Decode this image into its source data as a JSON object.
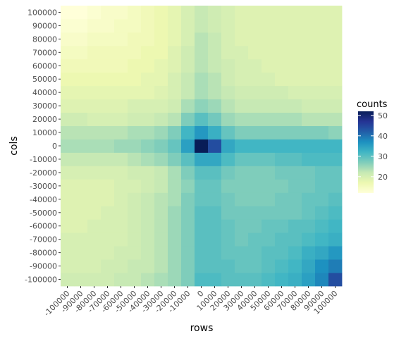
{
  "chart_data": {
    "type": "heatmap",
    "title": "",
    "xlabel": "rows",
    "ylabel": "cols",
    "x_ticks": [
      "-100000",
      "-90000",
      "-80000",
      "-70000",
      "-60000",
      "-50000",
      "-40000",
      "-30000",
      "-20000",
      "-10000",
      "0",
      "10000",
      "20000",
      "30000",
      "40000",
      "50000",
      "60000",
      "70000",
      "80000",
      "90000",
      "100000"
    ],
    "y_ticks": [
      "-100000",
      "-90000",
      "-80000",
      "-70000",
      "-60000",
      "-50000",
      "-40000",
      "-30000",
      "-20000",
      "-10000",
      "0",
      "10000",
      "20000",
      "30000",
      "40000",
      "50000",
      "60000",
      "70000",
      "80000",
      "90000",
      "100000"
    ],
    "x": [
      -100000,
      -90000,
      -80000,
      -70000,
      -60000,
      -50000,
      -40000,
      -30000,
      -20000,
      -10000,
      0,
      10000,
      20000,
      30000,
      40000,
      50000,
      60000,
      70000,
      80000,
      90000,
      100000
    ],
    "y": [
      -100000,
      -90000,
      -80000,
      -70000,
      -60000,
      -50000,
      -40000,
      -30000,
      -20000,
      -10000,
      0,
      10000,
      20000,
      30000,
      40000,
      50000,
      60000,
      70000,
      80000,
      90000,
      100000
    ],
    "values_note_removed": true,
    "values": [
      [
        21,
        21,
        21,
        21,
        22,
        22,
        23,
        24,
        25,
        27,
        31,
        31,
        30,
        30,
        30,
        31,
        32,
        33,
        35,
        38,
        44
      ],
      [
        20,
        20,
        20,
        21,
        21,
        22,
        22,
        23,
        25,
        27,
        30,
        30,
        30,
        29,
        29,
        30,
        31,
        32,
        34,
        37,
        39
      ],
      [
        20,
        20,
        20,
        20,
        21,
        21,
        22,
        23,
        25,
        27,
        30,
        30,
        29,
        29,
        29,
        30,
        30,
        31,
        33,
        34,
        36
      ],
      [
        20,
        20,
        20,
        20,
        20,
        21,
        22,
        23,
        25,
        27,
        30,
        30,
        29,
        28,
        29,
        29,
        30,
        30,
        31,
        32,
        33
      ],
      [
        19,
        19,
        20,
        20,
        20,
        21,
        22,
        23,
        25,
        27,
        30,
        30,
        29,
        28,
        28,
        29,
        29,
        30,
        30,
        31,
        32
      ],
      [
        19,
        19,
        19,
        20,
        20,
        21,
        22,
        23,
        25,
        27,
        30,
        30,
        28,
        28,
        28,
        28,
        28,
        28,
        29,
        30,
        31
      ],
      [
        19,
        19,
        19,
        19,
        20,
        21,
        22,
        23,
        24,
        27,
        29,
        29,
        28,
        27,
        27,
        27,
        28,
        28,
        29,
        29,
        30
      ],
      [
        19,
        19,
        19,
        19,
        20,
        20,
        21,
        22,
        24,
        26,
        29,
        29,
        27,
        27,
        27,
        27,
        27,
        28,
        28,
        29,
        29
      ],
      [
        20,
        20,
        20,
        20,
        20,
        21,
        21,
        22,
        24,
        27,
        30,
        30,
        28,
        27,
        27,
        27,
        28,
        28,
        28,
        29,
        29
      ],
      [
        22,
        22,
        22,
        22,
        22,
        23,
        24,
        25,
        27,
        30,
        34,
        34,
        31,
        29,
        29,
        29,
        30,
        30,
        31,
        31,
        31
      ],
      [
        24,
        24,
        24,
        24,
        25,
        25,
        26,
        27,
        29,
        35,
        52,
        44,
        34,
        32,
        32,
        32,
        32,
        32,
        32,
        32,
        32
      ],
      [
        23,
        23,
        23,
        23,
        23,
        24,
        24,
        25,
        27,
        32,
        36,
        33,
        29,
        27,
        27,
        27,
        27,
        27,
        27,
        27,
        26
      ],
      [
        21,
        21,
        20,
        20,
        20,
        21,
        21,
        22,
        23,
        27,
        30,
        28,
        25,
        24,
        24,
        24,
        24,
        24,
        23,
        23,
        23
      ],
      [
        19,
        19,
        19,
        19,
        19,
        20,
        20,
        20,
        21,
        24,
        26,
        25,
        23,
        22,
        22,
        22,
        22,
        22,
        21,
        21,
        21
      ],
      [
        18,
        18,
        18,
        18,
        18,
        18,
        18,
        19,
        20,
        22,
        24,
        23,
        22,
        21,
        21,
        21,
        21,
        20,
        20,
        20,
        20
      ],
      [
        17,
        17,
        17,
        17,
        17,
        17,
        18,
        18,
        20,
        22,
        24,
        23,
        21,
        20,
        20,
        20,
        19,
        19,
        19,
        19,
        19
      ],
      [
        16,
        16,
        16,
        16,
        16,
        17,
        17,
        18,
        19,
        21,
        23,
        22,
        21,
        20,
        20,
        19,
        19,
        19,
        19,
        19,
        19
      ],
      [
        15,
        15,
        16,
        16,
        16,
        16,
        17,
        17,
        19,
        21,
        23,
        22,
        20,
        20,
        19,
        19,
        19,
        19,
        19,
        19,
        19
      ],
      [
        14,
        14,
        15,
        15,
        15,
        16,
        16,
        17,
        18,
        20,
        23,
        22,
        20,
        19,
        19,
        19,
        19,
        19,
        19,
        19,
        19
      ],
      [
        13,
        13,
        14,
        14,
        15,
        15,
        16,
        17,
        18,
        20,
        22,
        21,
        20,
        19,
        19,
        19,
        19,
        19,
        19,
        19,
        19
      ],
      [
        12,
        12,
        13,
        14,
        14,
        15,
        16,
        17,
        18,
        20,
        22,
        21,
        20,
        19,
        19,
        19,
        19,
        19,
        19,
        19,
        19
      ]
    ],
    "legend": {
      "title": "counts",
      "placement": "right",
      "ticks": [
        20,
        30,
        40,
        50
      ],
      "range": [
        12,
        52
      ],
      "colors": [
        "#ffffd9",
        "#edf8b1",
        "#c7e9b4",
        "#7fcdbb",
        "#41b6c4",
        "#1d91c0",
        "#225ea8",
        "#253494",
        "#081d58"
      ]
    },
    "grid": true,
    "panel_background": "#ebebeb"
  }
}
